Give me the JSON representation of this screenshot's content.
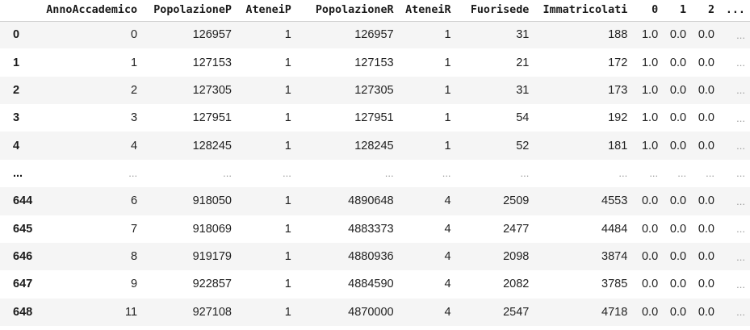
{
  "table": {
    "columns": [
      "",
      "AnnoAccademico",
      "PopolazioneP",
      "AteneiP",
      "PopolazioneR",
      "AteneiR",
      "Fuorisede",
      "Immatricolati",
      "0",
      "1",
      "2",
      "..."
    ],
    "rows": [
      {
        "index": "0",
        "cells": [
          "0",
          "126957",
          "1",
          "126957",
          "1",
          "31",
          "188",
          "1.0",
          "0.0",
          "0.0",
          "..."
        ]
      },
      {
        "index": "1",
        "cells": [
          "1",
          "127153",
          "1",
          "127153",
          "1",
          "21",
          "172",
          "1.0",
          "0.0",
          "0.0",
          "..."
        ]
      },
      {
        "index": "2",
        "cells": [
          "2",
          "127305",
          "1",
          "127305",
          "1",
          "31",
          "173",
          "1.0",
          "0.0",
          "0.0",
          "..."
        ]
      },
      {
        "index": "3",
        "cells": [
          "3",
          "127951",
          "1",
          "127951",
          "1",
          "54",
          "192",
          "1.0",
          "0.0",
          "0.0",
          "..."
        ]
      },
      {
        "index": "4",
        "cells": [
          "4",
          "128245",
          "1",
          "128245",
          "1",
          "52",
          "181",
          "1.0",
          "0.0",
          "0.0",
          "..."
        ]
      },
      {
        "index": "...",
        "cells": [
          "...",
          "...",
          "...",
          "...",
          "...",
          "...",
          "...",
          "...",
          "...",
          "...",
          "..."
        ]
      },
      {
        "index": "644",
        "cells": [
          "6",
          "918050",
          "1",
          "4890648",
          "4",
          "2509",
          "4553",
          "0.0",
          "0.0",
          "0.0",
          "..."
        ]
      },
      {
        "index": "645",
        "cells": [
          "7",
          "918069",
          "1",
          "4883373",
          "4",
          "2477",
          "4484",
          "0.0",
          "0.0",
          "0.0",
          "..."
        ]
      },
      {
        "index": "646",
        "cells": [
          "8",
          "919179",
          "1",
          "4880936",
          "4",
          "2098",
          "3874",
          "0.0",
          "0.0",
          "0.0",
          "..."
        ]
      },
      {
        "index": "647",
        "cells": [
          "9",
          "922857",
          "1",
          "4884590",
          "4",
          "2082",
          "3785",
          "0.0",
          "0.0",
          "0.0",
          "..."
        ]
      },
      {
        "index": "648",
        "cells": [
          "11",
          "927108",
          "1",
          "4870000",
          "4",
          "2547",
          "4718",
          "0.0",
          "0.0",
          "0.0",
          "..."
        ]
      }
    ]
  }
}
